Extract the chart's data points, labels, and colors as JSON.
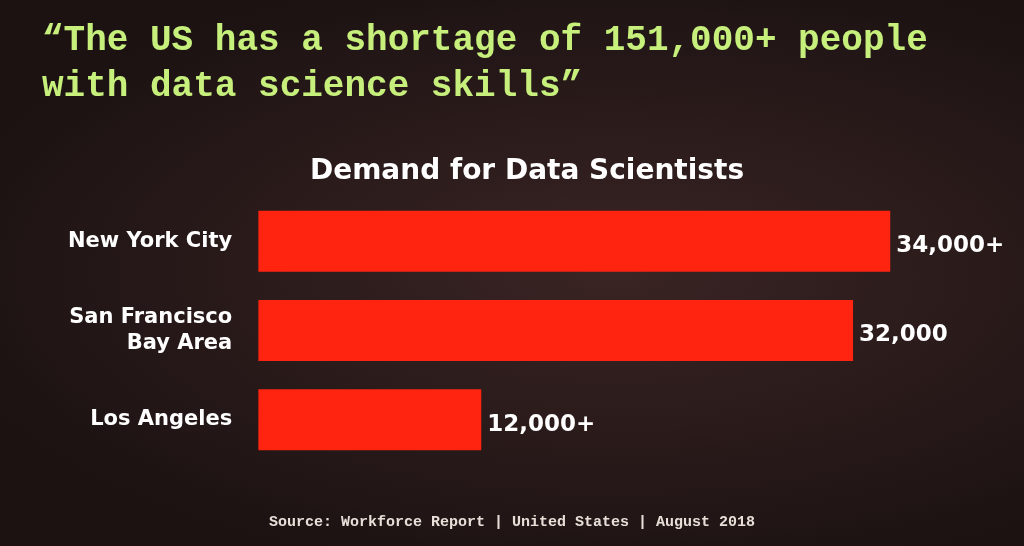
{
  "chart_data": {
    "type": "bar",
    "orientation": "horizontal",
    "title": "“The US has a shortage of 151,000+ people with data science skills”",
    "subtitle": "Demand for Data Scientists",
    "categories": [
      "New York City",
      "San Francisco Bay Area",
      "Los Angeles"
    ],
    "values": [
      34000,
      32000,
      12000
    ],
    "color": "#ff2410",
    "value_labels": [
      "34,000+",
      "32,000",
      "12,000+"
    ],
    "tick_labels": "y",
    "annotations": [
      "Source: Workforce Report | United States | August 2018"
    ]
  }
}
